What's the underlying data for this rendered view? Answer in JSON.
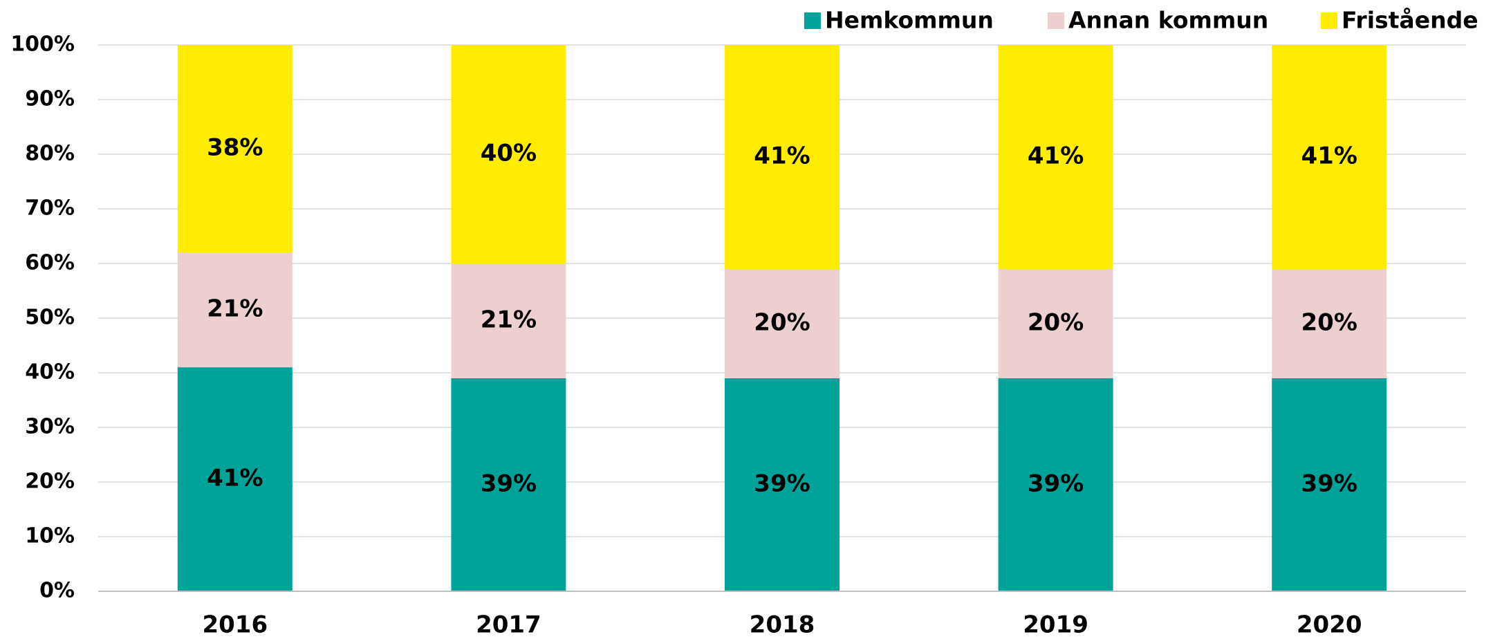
{
  "chart_data": {
    "type": "stacked_bar",
    "categories": [
      "2016",
      "2017",
      "2018",
      "2019",
      "2020"
    ],
    "series": [
      {
        "name": "Hemkommun",
        "color": "#00a39a",
        "values": [
          41,
          39,
          39,
          39,
          39
        ],
        "value_labels": [
          "41%",
          "39%",
          "39%",
          "39%",
          "39%"
        ]
      },
      {
        "name": "Annan kommun",
        "color": "#ecd0d0",
        "values": [
          21,
          21,
          20,
          20,
          20
        ],
        "value_labels": [
          "21%",
          "21%",
          "20%",
          "20%",
          "20%"
        ]
      },
      {
        "name": "Fristående",
        "color": "#ffec00",
        "values": [
          38,
          40,
          41,
          41,
          41
        ],
        "value_labels": [
          "38%",
          "40%",
          "41%",
          "41%",
          "41%"
        ]
      }
    ],
    "ylim": [
      0,
      100
    ],
    "yticks": [
      {
        "value": 0,
        "label": "0%"
      },
      {
        "value": 10,
        "label": "10%"
      },
      {
        "value": 20,
        "label": "20%"
      },
      {
        "value": 30,
        "label": "30%"
      },
      {
        "value": 40,
        "label": "40%"
      },
      {
        "value": 50,
        "label": "50%"
      },
      {
        "value": 60,
        "label": "60%"
      },
      {
        "value": 70,
        "label": "70%"
      },
      {
        "value": 80,
        "label": "80%"
      },
      {
        "value": 90,
        "label": "90%"
      },
      {
        "value": 100,
        "label": "100%"
      }
    ],
    "grid": true,
    "legend": "top-right"
  }
}
